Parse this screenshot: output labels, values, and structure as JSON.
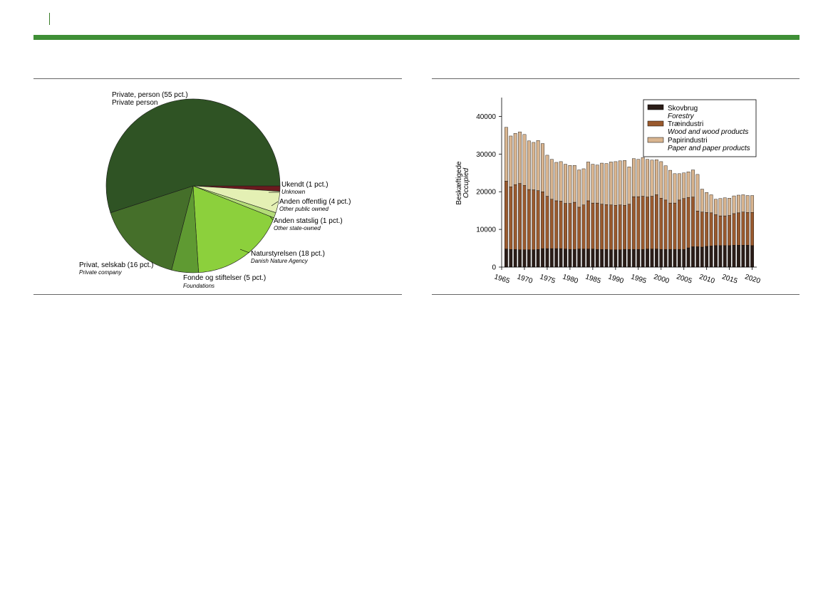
{
  "colors": {
    "accent_green": "#3f8f36",
    "forestry": "#2b1d18",
    "wood": "#9a5a2e",
    "paper": "#d9b590"
  },
  "chart_data": [
    {
      "type": "pie",
      "slices": [
        {
          "label": "Ukendt (1 pct.)",
          "sublabel": "Unknown",
          "value": 1,
          "color": "#6b1a1e"
        },
        {
          "label": "Anden offentlig (4 pct.)",
          "sublabel": "Other public owned",
          "value": 4,
          "color": "#e4f0b4"
        },
        {
          "label": "Anden statslig (1 pct.)",
          "sublabel": "Other state-owned",
          "value": 1,
          "color": "#b4dc78"
        },
        {
          "label": "Naturstyrelsen (18 pct.)",
          "sublabel": "Danish Nature Agency",
          "value": 18,
          "color": "#8cd03c"
        },
        {
          "label": "Fonde og stiftelser (5 pct.)",
          "sublabel": "Foundations",
          "value": 5,
          "color": "#5f9a32"
        },
        {
          "label": "Privat, selskab (16 pct.)",
          "sublabel": "Private company",
          "value": 16,
          "color": "#456f2a"
        },
        {
          "label": "Private, person (55 pct.)",
          "sublabel": "Private person",
          "value": 55,
          "color": "#2f5324"
        }
      ]
    },
    {
      "type": "bar",
      "stacked": true,
      "ylabel": "Beskæftigede",
      "ylabel_en": "Occupied",
      "ylim": [
        0,
        45000
      ],
      "yticks": [
        0,
        10000,
        20000,
        30000,
        40000
      ],
      "xticks": [
        1965,
        1970,
        1975,
        1980,
        1985,
        1990,
        1995,
        2000,
        2005,
        2010,
        2015,
        2020
      ],
      "x": [
        1966,
        1967,
        1968,
        1969,
        1970,
        1971,
        1972,
        1973,
        1974,
        1975,
        1976,
        1977,
        1978,
        1979,
        1980,
        1981,
        1982,
        1983,
        1984,
        1985,
        1986,
        1987,
        1988,
        1989,
        1990,
        1991,
        1992,
        1993,
        1994,
        1995,
        1996,
        1997,
        1998,
        1999,
        2000,
        2001,
        2002,
        2003,
        2004,
        2005,
        2006,
        2007,
        2008,
        2009,
        2010,
        2011,
        2012,
        2013,
        2014,
        2015,
        2016,
        2017,
        2018,
        2019,
        2020
      ],
      "series": [
        {
          "name": "Skovbrug",
          "name_en": "Forestry",
          "values": [
            4800,
            4700,
            4700,
            4600,
            4600,
            4600,
            4600,
            4700,
            4900,
            4900,
            4900,
            4900,
            4900,
            4800,
            4700,
            4700,
            4800,
            4800,
            4800,
            4800,
            4700,
            4700,
            4700,
            4600,
            4600,
            4600,
            4700,
            4700,
            4700,
            4700,
            4700,
            4800,
            4800,
            4800,
            4700,
            4700,
            4700,
            4700,
            4700,
            4700,
            5100,
            5400,
            5400,
            5300,
            5500,
            5600,
            5700,
            5700,
            5700,
            5700,
            5800,
            5800,
            5800,
            5800,
            5700
          ]
        },
        {
          "name": "Træindustri",
          "name_en": "Wood and wood products",
          "values": [
            18000,
            16600,
            17200,
            17600,
            17100,
            16000,
            15900,
            15600,
            15100,
            13900,
            13100,
            12700,
            12600,
            12100,
            12200,
            12500,
            11100,
            11700,
            12800,
            12200,
            12300,
            12000,
            11900,
            11900,
            11800,
            11900,
            11700,
            12000,
            14000,
            14000,
            14100,
            13800,
            14000,
            14400,
            13600,
            13100,
            12300,
            12300,
            13100,
            13500,
            13400,
            13200,
            9500,
            9300,
            9000,
            8800,
            8200,
            7900,
            7900,
            8000,
            8400,
            8600,
            8800,
            8700,
            8800
          ]
        },
        {
          "name": "Papirindustri",
          "name_en": "Paper and paper products",
          "values": [
            14300,
            13500,
            13600,
            13700,
            13500,
            12900,
            12600,
            13300,
            12800,
            10900,
            10600,
            10200,
            10500,
            10400,
            10100,
            9800,
            9900,
            9600,
            10300,
            10300,
            10100,
            10900,
            10900,
            11400,
            11600,
            11700,
            11900,
            9900,
            10100,
            9900,
            10300,
            10000,
            9600,
            9300,
            9700,
            9100,
            8700,
            7800,
            7000,
            6800,
            6800,
            7200,
            9700,
            6100,
            5300,
            4800,
            4100,
            4600,
            4800,
            4600,
            4700,
            4700,
            4600,
            4500,
            4500
          ]
        }
      ]
    }
  ]
}
